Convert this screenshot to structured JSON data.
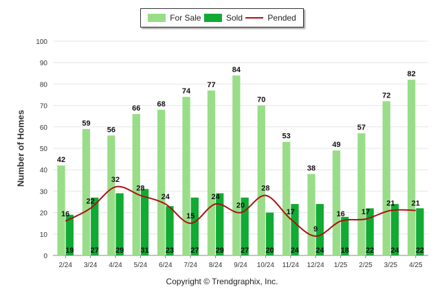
{
  "legend": {
    "for_sale": "For Sale",
    "sold": "Sold",
    "pended": "Pended"
  },
  "copyright": "Copyright © Trendgraphix, Inc.",
  "chart_data": {
    "type": "bar",
    "categories": [
      "2/24",
      "3/24",
      "4/24",
      "5/24",
      "6/24",
      "7/24",
      "8/24",
      "9/24",
      "10/24",
      "11/24",
      "12/24",
      "1/25",
      "2/25",
      "3/25",
      "4/25"
    ],
    "series": [
      {
        "name": "For Sale",
        "type": "bar",
        "color": "#99dd88",
        "values": [
          42,
          59,
          56,
          66,
          68,
          74,
          77,
          84,
          70,
          53,
          38,
          49,
          57,
          72,
          82
        ]
      },
      {
        "name": "Sold",
        "type": "bar",
        "color": "#11aa33",
        "values": [
          19,
          27,
          29,
          31,
          23,
          27,
          29,
          27,
          20,
          24,
          24,
          18,
          22,
          24,
          22
        ]
      },
      {
        "name": "Pended",
        "type": "line",
        "color": "#aa1111",
        "values": [
          16,
          22,
          32,
          28,
          24,
          15,
          24,
          20,
          28,
          17,
          9,
          16,
          17,
          21,
          21
        ]
      }
    ],
    "ylabel": "Number of Homes",
    "ylim": [
      0,
      100
    ],
    "yticks": [
      0,
      10,
      20,
      30,
      40,
      50,
      60,
      70,
      80,
      90,
      100
    ],
    "grid": true,
    "legend_position": "top-center"
  }
}
